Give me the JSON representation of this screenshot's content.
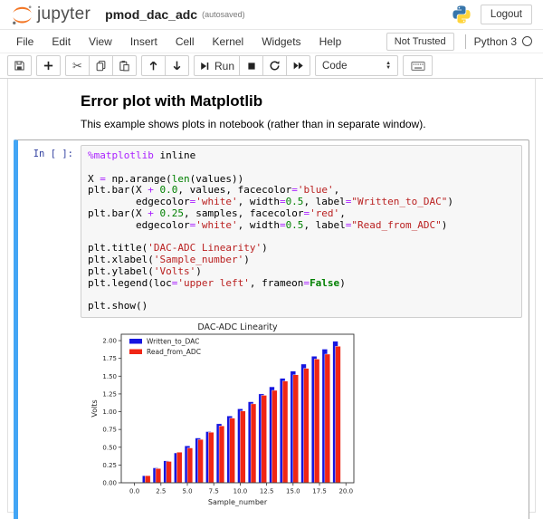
{
  "header": {
    "brand": "jupyter",
    "title": "pmod_dac_adc",
    "autosave": "(autosaved)",
    "logout_label": "Logout"
  },
  "menubar": {
    "items": [
      "File",
      "Edit",
      "View",
      "Insert",
      "Cell",
      "Kernel",
      "Widgets",
      "Help"
    ],
    "trusted_label": "Not Trusted",
    "kernel_name": "Python 3"
  },
  "toolbar": {
    "run_label": "Run",
    "cell_type_value": "Code",
    "icons": [
      "save-icon",
      "plus-icon",
      "scissors-icon",
      "copy-icon",
      "paste-icon",
      "arrow-up-icon",
      "arrow-down-icon",
      "step-forward-icon",
      "stop-icon",
      "restart-icon",
      "fast-forward-icon",
      "keyboard-icon"
    ]
  },
  "markdown_cell": {
    "heading": "Error plot with Matplotlib",
    "text": "This example shows plots in notebook (rather than in separate window)."
  },
  "code_cell": {
    "prompt": "In [ ]:",
    "lines": [
      [
        [
          "%matplotlib",
          "m"
        ],
        [
          " inline",
          "p"
        ]
      ],
      [],
      [
        [
          "X ",
          "p"
        ],
        [
          "=",
          "o"
        ],
        [
          " np.arange(",
          "p"
        ],
        [
          "len",
          "b"
        ],
        [
          "(values))",
          "p"
        ]
      ],
      [
        [
          "plt.bar(X ",
          "p"
        ],
        [
          "+",
          "o"
        ],
        [
          " ",
          "p"
        ],
        [
          "0.0",
          "n"
        ],
        [
          ", values, facecolor",
          "p"
        ],
        [
          "=",
          "o"
        ],
        [
          "'blue'",
          "s"
        ],
        [
          ",",
          "p"
        ]
      ],
      [
        [
          "        edgecolor",
          "p"
        ],
        [
          "=",
          "o"
        ],
        [
          "'white'",
          "s"
        ],
        [
          ", width",
          "p"
        ],
        [
          "=",
          "o"
        ],
        [
          "0.5",
          "n"
        ],
        [
          ", label",
          "p"
        ],
        [
          "=",
          "o"
        ],
        [
          "\"Written_to_DAC\"",
          "s"
        ],
        [
          ")",
          "p"
        ]
      ],
      [
        [
          "plt.bar(X ",
          "p"
        ],
        [
          "+",
          "o"
        ],
        [
          " ",
          "p"
        ],
        [
          "0.25",
          "n"
        ],
        [
          ", samples, facecolor",
          "p"
        ],
        [
          "=",
          "o"
        ],
        [
          "'red'",
          "s"
        ],
        [
          ",",
          "p"
        ]
      ],
      [
        [
          "        edgecolor",
          "p"
        ],
        [
          "=",
          "o"
        ],
        [
          "'white'",
          "s"
        ],
        [
          ", width",
          "p"
        ],
        [
          "=",
          "o"
        ],
        [
          "0.5",
          "n"
        ],
        [
          ", label",
          "p"
        ],
        [
          "=",
          "o"
        ],
        [
          "\"Read_from_ADC\"",
          "s"
        ],
        [
          ")",
          "p"
        ]
      ],
      [],
      [
        [
          "plt.title(",
          "p"
        ],
        [
          "'DAC-ADC Linearity'",
          "s"
        ],
        [
          ")",
          "p"
        ]
      ],
      [
        [
          "plt.xlabel(",
          "p"
        ],
        [
          "'Sample_number'",
          "s"
        ],
        [
          ")",
          "p"
        ]
      ],
      [
        [
          "plt.ylabel(",
          "p"
        ],
        [
          "'Volts'",
          "s"
        ],
        [
          ")",
          "p"
        ]
      ],
      [
        [
          "plt.legend(loc",
          "p"
        ],
        [
          "=",
          "o"
        ],
        [
          "'upper left'",
          "s"
        ],
        [
          ", frameon",
          "p"
        ],
        [
          "=",
          "o"
        ],
        [
          "False",
          "k"
        ],
        [
          ")",
          "p"
        ]
      ],
      [],
      [
        [
          "plt.show()",
          "p"
        ]
      ]
    ]
  },
  "chart_data": {
    "type": "bar",
    "title": "DAC-ADC Linearity",
    "xlabel": "Sample_number",
    "ylabel": "Volts",
    "x": [
      0,
      1,
      2,
      3,
      4,
      5,
      6,
      7,
      8,
      9,
      10,
      11,
      12,
      13,
      14,
      15,
      16,
      17,
      18,
      19
    ],
    "series": [
      {
        "name": "Written_to_DAC",
        "color": "#1515E0",
        "offset": 0.0,
        "bar_width": 0.5,
        "values": [
          0,
          0.1,
          0.21,
          0.31,
          0.42,
          0.52,
          0.63,
          0.72,
          0.83,
          0.94,
          1.04,
          1.14,
          1.25,
          1.35,
          1.47,
          1.57,
          1.67,
          1.78,
          1.88,
          1.99
        ]
      },
      {
        "name": "Read_from_ADC",
        "color": "#F02615",
        "offset": 0.25,
        "bar_width": 0.5,
        "values": [
          0,
          0.1,
          0.2,
          0.3,
          0.43,
          0.49,
          0.61,
          0.71,
          0.8,
          0.91,
          1.01,
          1.11,
          1.23,
          1.3,
          1.43,
          1.52,
          1.61,
          1.74,
          1.81,
          1.92
        ]
      }
    ],
    "xticks": [
      0.0,
      2.5,
      5.0,
      7.5,
      10.0,
      12.5,
      15.0,
      17.5,
      20.0
    ],
    "yticks": [
      0.0,
      0.25,
      0.5,
      0.75,
      1.0,
      1.25,
      1.5,
      1.75,
      2.0
    ],
    "xlim": [
      -1.25,
      20.75
    ],
    "ylim": [
      0,
      2.09
    ],
    "legend": {
      "loc": "upper left",
      "frameon": false
    },
    "grid": false
  },
  "colors": {
    "selected_cell_bar": "#42A5F5",
    "prompt_text": "#303F9F",
    "jupyter_orange": "#F37726",
    "python_blue": "#3776AB",
    "python_yellow": "#FFD43B"
  }
}
